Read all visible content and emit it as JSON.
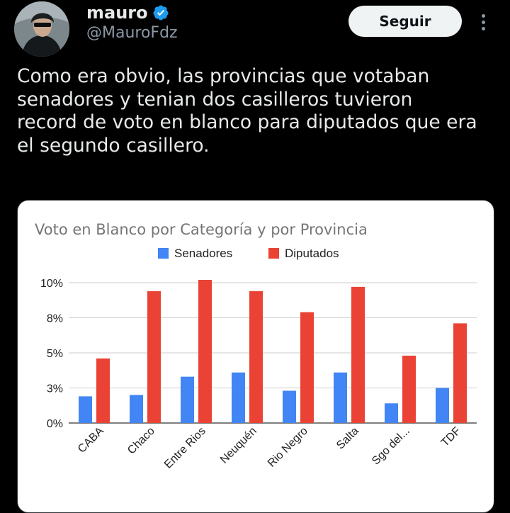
{
  "tweet": {
    "author": {
      "display_name": "mauro",
      "handle": "@MauroFdz",
      "verified_icon": "verified-badge-icon",
      "badge_color": "#1d9bf0"
    },
    "follow_label": "Seguir",
    "more_icon": "more-dots-icon",
    "text": "Como era obvio, las provincias que votaban\nsenadores y tenian dos casilleros tuvieron\nrecord de voto en blanco para diputados que era\nel segundo casillero."
  },
  "chart_data": {
    "type": "bar",
    "title": "Voto en Blanco por Categoría y por Provincia",
    "xlabel": "",
    "ylabel": "",
    "ylim": [
      0,
      10.3
    ],
    "y_ticks": [
      {
        "value": 0,
        "label": "0%"
      },
      {
        "value": 2.5,
        "label": "3%"
      },
      {
        "value": 5,
        "label": "5%"
      },
      {
        "value": 7.5,
        "label": "8%"
      },
      {
        "value": 10,
        "label": "10%"
      }
    ],
    "categories": [
      "CABA",
      "Chaco",
      "Entre Rios",
      "Neuquén",
      "Rio Negro",
      "Salta",
      "Sgo del...",
      "TDF"
    ],
    "series": [
      {
        "name": "Senadores",
        "color": "#4285f4",
        "values": [
          1.9,
          2.0,
          3.3,
          3.6,
          2.3,
          3.6,
          1.4,
          2.5
        ]
      },
      {
        "name": "Diputados",
        "color": "#ea4335",
        "values": [
          4.6,
          9.4,
          10.2,
          9.4,
          7.9,
          9.7,
          4.8,
          7.1
        ]
      }
    ],
    "legend_position": "top",
    "grid": true
  }
}
